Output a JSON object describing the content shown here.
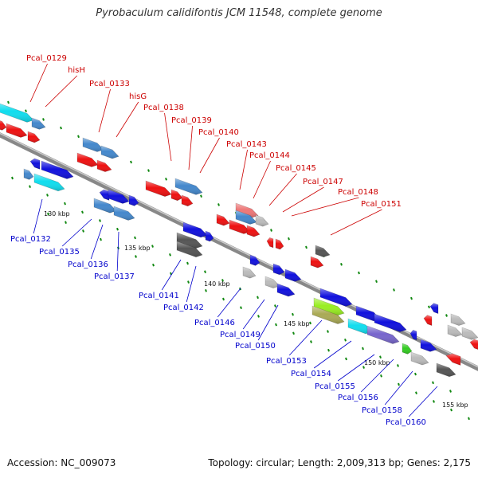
{
  "title": "Pyrobaculum calidifontis JCM 11548, complete genome",
  "footer": {
    "accession": "Accession: NC_009073",
    "summary": "Topology: circular; Length: 2,009,313 bp; Genes: 2,175"
  },
  "colors": {
    "top_label": "#cc0000",
    "bottom_label": "#0000cc",
    "backbone": "#888888",
    "tick": "#118811",
    "red": "#ee1111",
    "blue": "#1111dd",
    "cyan": "#11ddee",
    "steelblue": "#4488cc",
    "gray": "#555555",
    "lightgray": "#bbbbbb",
    "pink": "#ee7777",
    "lime": "#99ee22",
    "olive": "#aaaa55",
    "violet": "#7766cc",
    "green": "#33cc22"
  },
  "scale_ticks": [
    "130 kbp",
    "135 kbp",
    "140 kbp",
    "145 kbp",
    "150 kbp",
    "155 kbp"
  ],
  "top_labels": [
    "Pcal_0129",
    "hisH",
    "Pcal_0133",
    "hisG",
    "Pcal_0138",
    "Pcal_0139",
    "Pcal_0140",
    "Pcal_0143",
    "Pcal_0144",
    "Pcal_0145",
    "Pcal_0147",
    "Pcal_0148",
    "Pcal_0151"
  ],
  "bottom_labels": [
    "Pcal_0132",
    "Pcal_0135",
    "Pcal_0136",
    "Pcal_0137",
    "Pcal_0141",
    "Pcal_0142",
    "Pcal_0146",
    "Pcal_0149",
    "Pcal_0150",
    "Pcal_0153",
    "Pcal_0154",
    "Pcal_0155",
    "Pcal_0156",
    "Pcal_0158",
    "Pcal_0160"
  ]
}
